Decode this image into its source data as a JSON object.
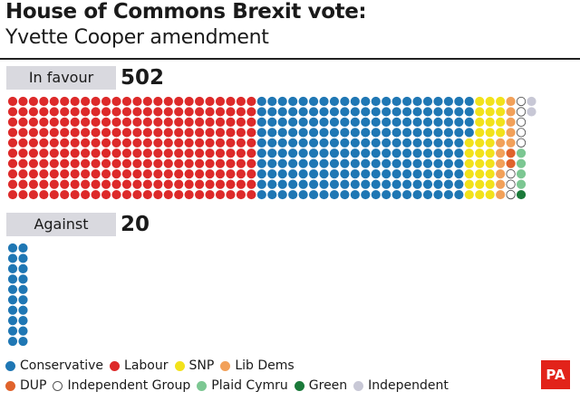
{
  "title": "House of Commons Brexit vote:",
  "subtitle": "Yvette Cooper amendment",
  "colors": {
    "Conservative": "#1f77b4",
    "Labour": "#dd2a2a",
    "SNP": "#f2e21b",
    "Lib Dems": "#f2a15a",
    "DUP": "#e0632c",
    "Independent Group": "#ffffff",
    "Plaid Cymru": "#7cc792",
    "Green": "#1b7a3a",
    "Independent": "#c8c8d6"
  },
  "chart_data": {
    "type": "waffle",
    "title": "House of Commons Brexit vote:",
    "subtitle": "Yvette Cooper amendment",
    "groups": [
      {
        "label": "In favour",
        "total": "502",
        "parties": [
          {
            "party": "Labour",
            "seats": 240
          },
          {
            "party": "Conservative",
            "seats": 204
          },
          {
            "party": "SNP",
            "seats": 30
          },
          {
            "party": "Lib Dems",
            "seats": 11
          },
          {
            "party": "DUP",
            "seats": 2
          },
          {
            "party": "Independent Group",
            "seats": 8
          },
          {
            "party": "Plaid Cymru",
            "seats": 4
          },
          {
            "party": "Green",
            "seats": 1
          },
          {
            "party": "Independent",
            "seats": 2
          }
        ]
      },
      {
        "label": "Against",
        "total": "20",
        "parties": [
          {
            "party": "Conservative",
            "seats": 20
          }
        ]
      }
    ],
    "legend": [
      "Conservative",
      "Labour",
      "SNP",
      "Lib Dems",
      "DUP",
      "Independent Group",
      "Plaid Cymru",
      "Green",
      "Independent"
    ]
  },
  "legend_rows": [
    [
      "Conservative",
      "Labour",
      "SNP",
      "Lib Dems"
    ],
    [
      "DUP",
      "Independent Group",
      "Plaid Cymru",
      "Green",
      "Independent"
    ]
  ],
  "logo_text": "PA"
}
